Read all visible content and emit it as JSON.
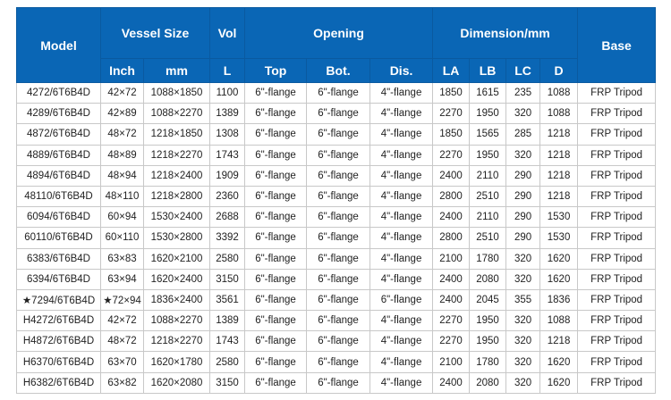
{
  "header": {
    "model": "Model",
    "vessel_size": "Vessel Size",
    "vol": "Vol",
    "opening": "Opening",
    "dimension": "Dimension/mm",
    "base": "Base",
    "sub": [
      "Inch",
      "mm",
      "L",
      "Top",
      "Bot.",
      "Dis.",
      "LA",
      "LB",
      "LC",
      "D"
    ]
  },
  "rows": [
    [
      "4272/6T6B4D",
      "42×72",
      "1088×1850",
      "1100",
      "6\"-flange",
      "6\"-flange",
      "4\"-flange",
      "1850",
      "1615",
      "235",
      "1088",
      "FRP Tripod"
    ],
    [
      "4289/6T6B4D",
      "42×89",
      "1088×2270",
      "1389",
      "6\"-flange",
      "6\"-flange",
      "4\"-flange",
      "2270",
      "1950",
      "320",
      "1088",
      "FRP Tripod"
    ],
    [
      "4872/6T6B4D",
      "48×72",
      "1218×1850",
      "1308",
      "6\"-flange",
      "6\"-flange",
      "4\"-flange",
      "1850",
      "1565",
      "285",
      "1218",
      "FRP Tripod"
    ],
    [
      "4889/6T6B4D",
      "48×89",
      "1218×2270",
      "1743",
      "6\"-flange",
      "6\"-flange",
      "4\"-flange",
      "2270",
      "1950",
      "320",
      "1218",
      "FRP Tripod"
    ],
    [
      "4894/6T6B4D",
      "48×94",
      "1218×2400",
      "1909",
      "6\"-flange",
      "6\"-flange",
      "4\"-flange",
      "2400",
      "2110",
      "290",
      "1218",
      "FRP Tripod"
    ],
    [
      "48110/6T6B4D",
      "48×110",
      "1218×2800",
      "2360",
      "6\"-flange",
      "6\"-flange",
      "4\"-flange",
      "2800",
      "2510",
      "290",
      "1218",
      "FRP Tripod"
    ],
    [
      "6094/6T6B4D",
      "60×94",
      "1530×2400",
      "2688",
      "6\"-flange",
      "6\"-flange",
      "4\"-flange",
      "2400",
      "2110",
      "290",
      "1530",
      "FRP Tripod"
    ],
    [
      "60110/6T6B4D",
      "60×110",
      "1530×2800",
      "3392",
      "6\"-flange",
      "6\"-flange",
      "4\"-flange",
      "2800",
      "2510",
      "290",
      "1530",
      "FRP Tripod"
    ],
    [
      "6383/6T6B4D",
      "63×83",
      "1620×2100",
      "2580",
      "6\"-flange",
      "6\"-flange",
      "4\"-flange",
      "2100",
      "1780",
      "320",
      "1620",
      "FRP Tripod"
    ],
    [
      "6394/6T6B4D",
      "63×94",
      "1620×2400",
      "3150",
      "6\"-flange",
      "6\"-flange",
      "4\"-flange",
      "2400",
      "2080",
      "320",
      "1620",
      "FRP Tripod"
    ],
    [
      "★7294/6T6B4D",
      "★72×94",
      "1836×2400",
      "3561",
      "6\"-flange",
      "6\"-flange",
      "6\"-flange",
      "2400",
      "2045",
      "355",
      "1836",
      "FRP Tripod"
    ],
    [
      "H4272/6T6B4D",
      "42×72",
      "1088×2270",
      "1389",
      "6\"-flange",
      "6\"-flange",
      "4\"-flange",
      "2270",
      "1950",
      "320",
      "1088",
      "FRP Tripod"
    ],
    [
      "H4872/6T6B4D",
      "48×72",
      "1218×2270",
      "1743",
      "6\"-flange",
      "6\"-flange",
      "4\"-flange",
      "2270",
      "1950",
      "320",
      "1218",
      "FRP Tripod"
    ],
    [
      "H6370/6T6B4D",
      "63×70",
      "1620×1780",
      "2580",
      "6\"-flange",
      "6\"-flange",
      "4\"-flange",
      "2100",
      "1780",
      "320",
      "1620",
      "FRP Tripod"
    ],
    [
      "H6382/6T6B4D",
      "63×82",
      "1620×2080",
      "3150",
      "6\"-flange",
      "6\"-flange",
      "4\"-flange",
      "2400",
      "2080",
      "320",
      "1620",
      "FRP Tripod"
    ]
  ]
}
